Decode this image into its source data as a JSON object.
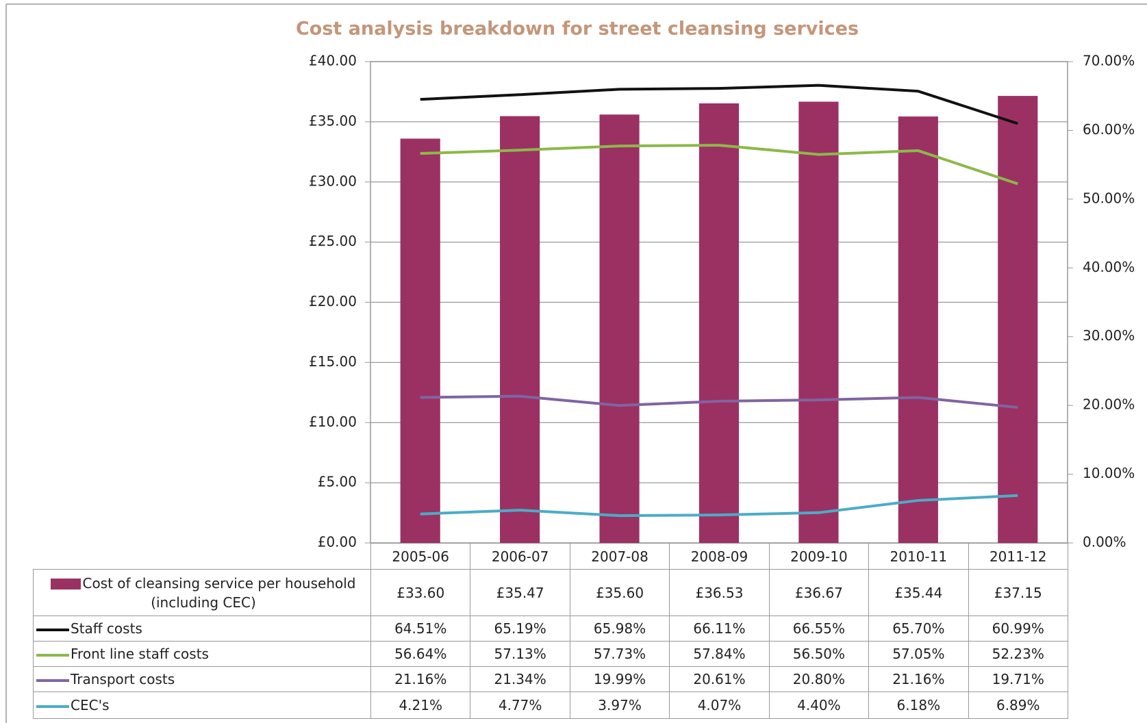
{
  "chart_data": {
    "type": "bar-line",
    "title": "Cost analysis breakdown for street cleansing services",
    "categories": [
      "2005-06",
      "2006-07",
      "2007-08",
      "2008-09",
      "2009-10",
      "2010-11",
      "2011-12"
    ],
    "series": [
      {
        "name": "Cost of cleansing service per household (including CEC)",
        "type": "bar",
        "color": "#9b3163",
        "axis": "y",
        "values": [
          33.6,
          35.47,
          35.6,
          36.53,
          36.67,
          35.44,
          37.15
        ],
        "value_labels": [
          "£33.60",
          "£35.47",
          "£35.60",
          "£36.53",
          "£36.67",
          "£35.44",
          "£37.15"
        ]
      },
      {
        "name": "Staff costs",
        "type": "line",
        "color": "#111111",
        "axis": "y2",
        "values": [
          64.51,
          65.19,
          65.98,
          66.11,
          66.55,
          65.7,
          60.99
        ],
        "value_labels": [
          "64.51%",
          "65.19%",
          "65.98%",
          "66.11%",
          "66.55%",
          "65.70%",
          "60.99%"
        ]
      },
      {
        "name": "Front line staff costs",
        "type": "line",
        "color": "#8db84a",
        "axis": "y2",
        "values": [
          56.64,
          57.13,
          57.73,
          57.84,
          56.5,
          57.05,
          52.23
        ],
        "value_labels": [
          "56.64%",
          "57.13%",
          "57.73%",
          "57.84%",
          "56.50%",
          "57.05%",
          "52.23%"
        ]
      },
      {
        "name": "Transport costs",
        "type": "line",
        "color": "#8064a2",
        "axis": "y2",
        "values": [
          21.16,
          21.34,
          19.99,
          20.61,
          20.8,
          21.16,
          19.71
        ],
        "value_labels": [
          "21.16%",
          "21.34%",
          "19.99%",
          "20.61%",
          "20.80%",
          "21.16%",
          "19.71%"
        ]
      },
      {
        "name": "CEC's",
        "type": "line",
        "color": "#4bacc6",
        "axis": "y2",
        "values": [
          4.21,
          4.77,
          3.97,
          4.07,
          4.4,
          6.18,
          6.89
        ],
        "value_labels": [
          "4.21%",
          "4.77%",
          "3.97%",
          "4.07%",
          "4.40%",
          "6.18%",
          "6.89%"
        ]
      }
    ],
    "ylim": [
      0,
      40
    ],
    "yticks": [
      {
        "value": 0,
        "label": "£0.00"
      },
      {
        "value": 5,
        "label": "£5.00"
      },
      {
        "value": 10,
        "label": "£10.00"
      },
      {
        "value": 15,
        "label": "£15.00"
      },
      {
        "value": 20,
        "label": "£20.00"
      },
      {
        "value": 25,
        "label": "£25.00"
      },
      {
        "value": 30,
        "label": "£30.00"
      },
      {
        "value": 35,
        "label": "£35.00"
      },
      {
        "value": 40,
        "label": "£40.00"
      }
    ],
    "y2lim": [
      0,
      70
    ],
    "y2ticks": [
      {
        "value": 0,
        "label": "0.00%"
      },
      {
        "value": 10,
        "label": "10.00%"
      },
      {
        "value": 20,
        "label": "20.00%"
      },
      {
        "value": 30,
        "label": "30.00%"
      },
      {
        "value": 40,
        "label": "40.00%"
      },
      {
        "value": 50,
        "label": "50.00%"
      },
      {
        "value": 60,
        "label": "60.00%"
      },
      {
        "value": 70,
        "label": "70.00%"
      }
    ],
    "grid": true
  }
}
